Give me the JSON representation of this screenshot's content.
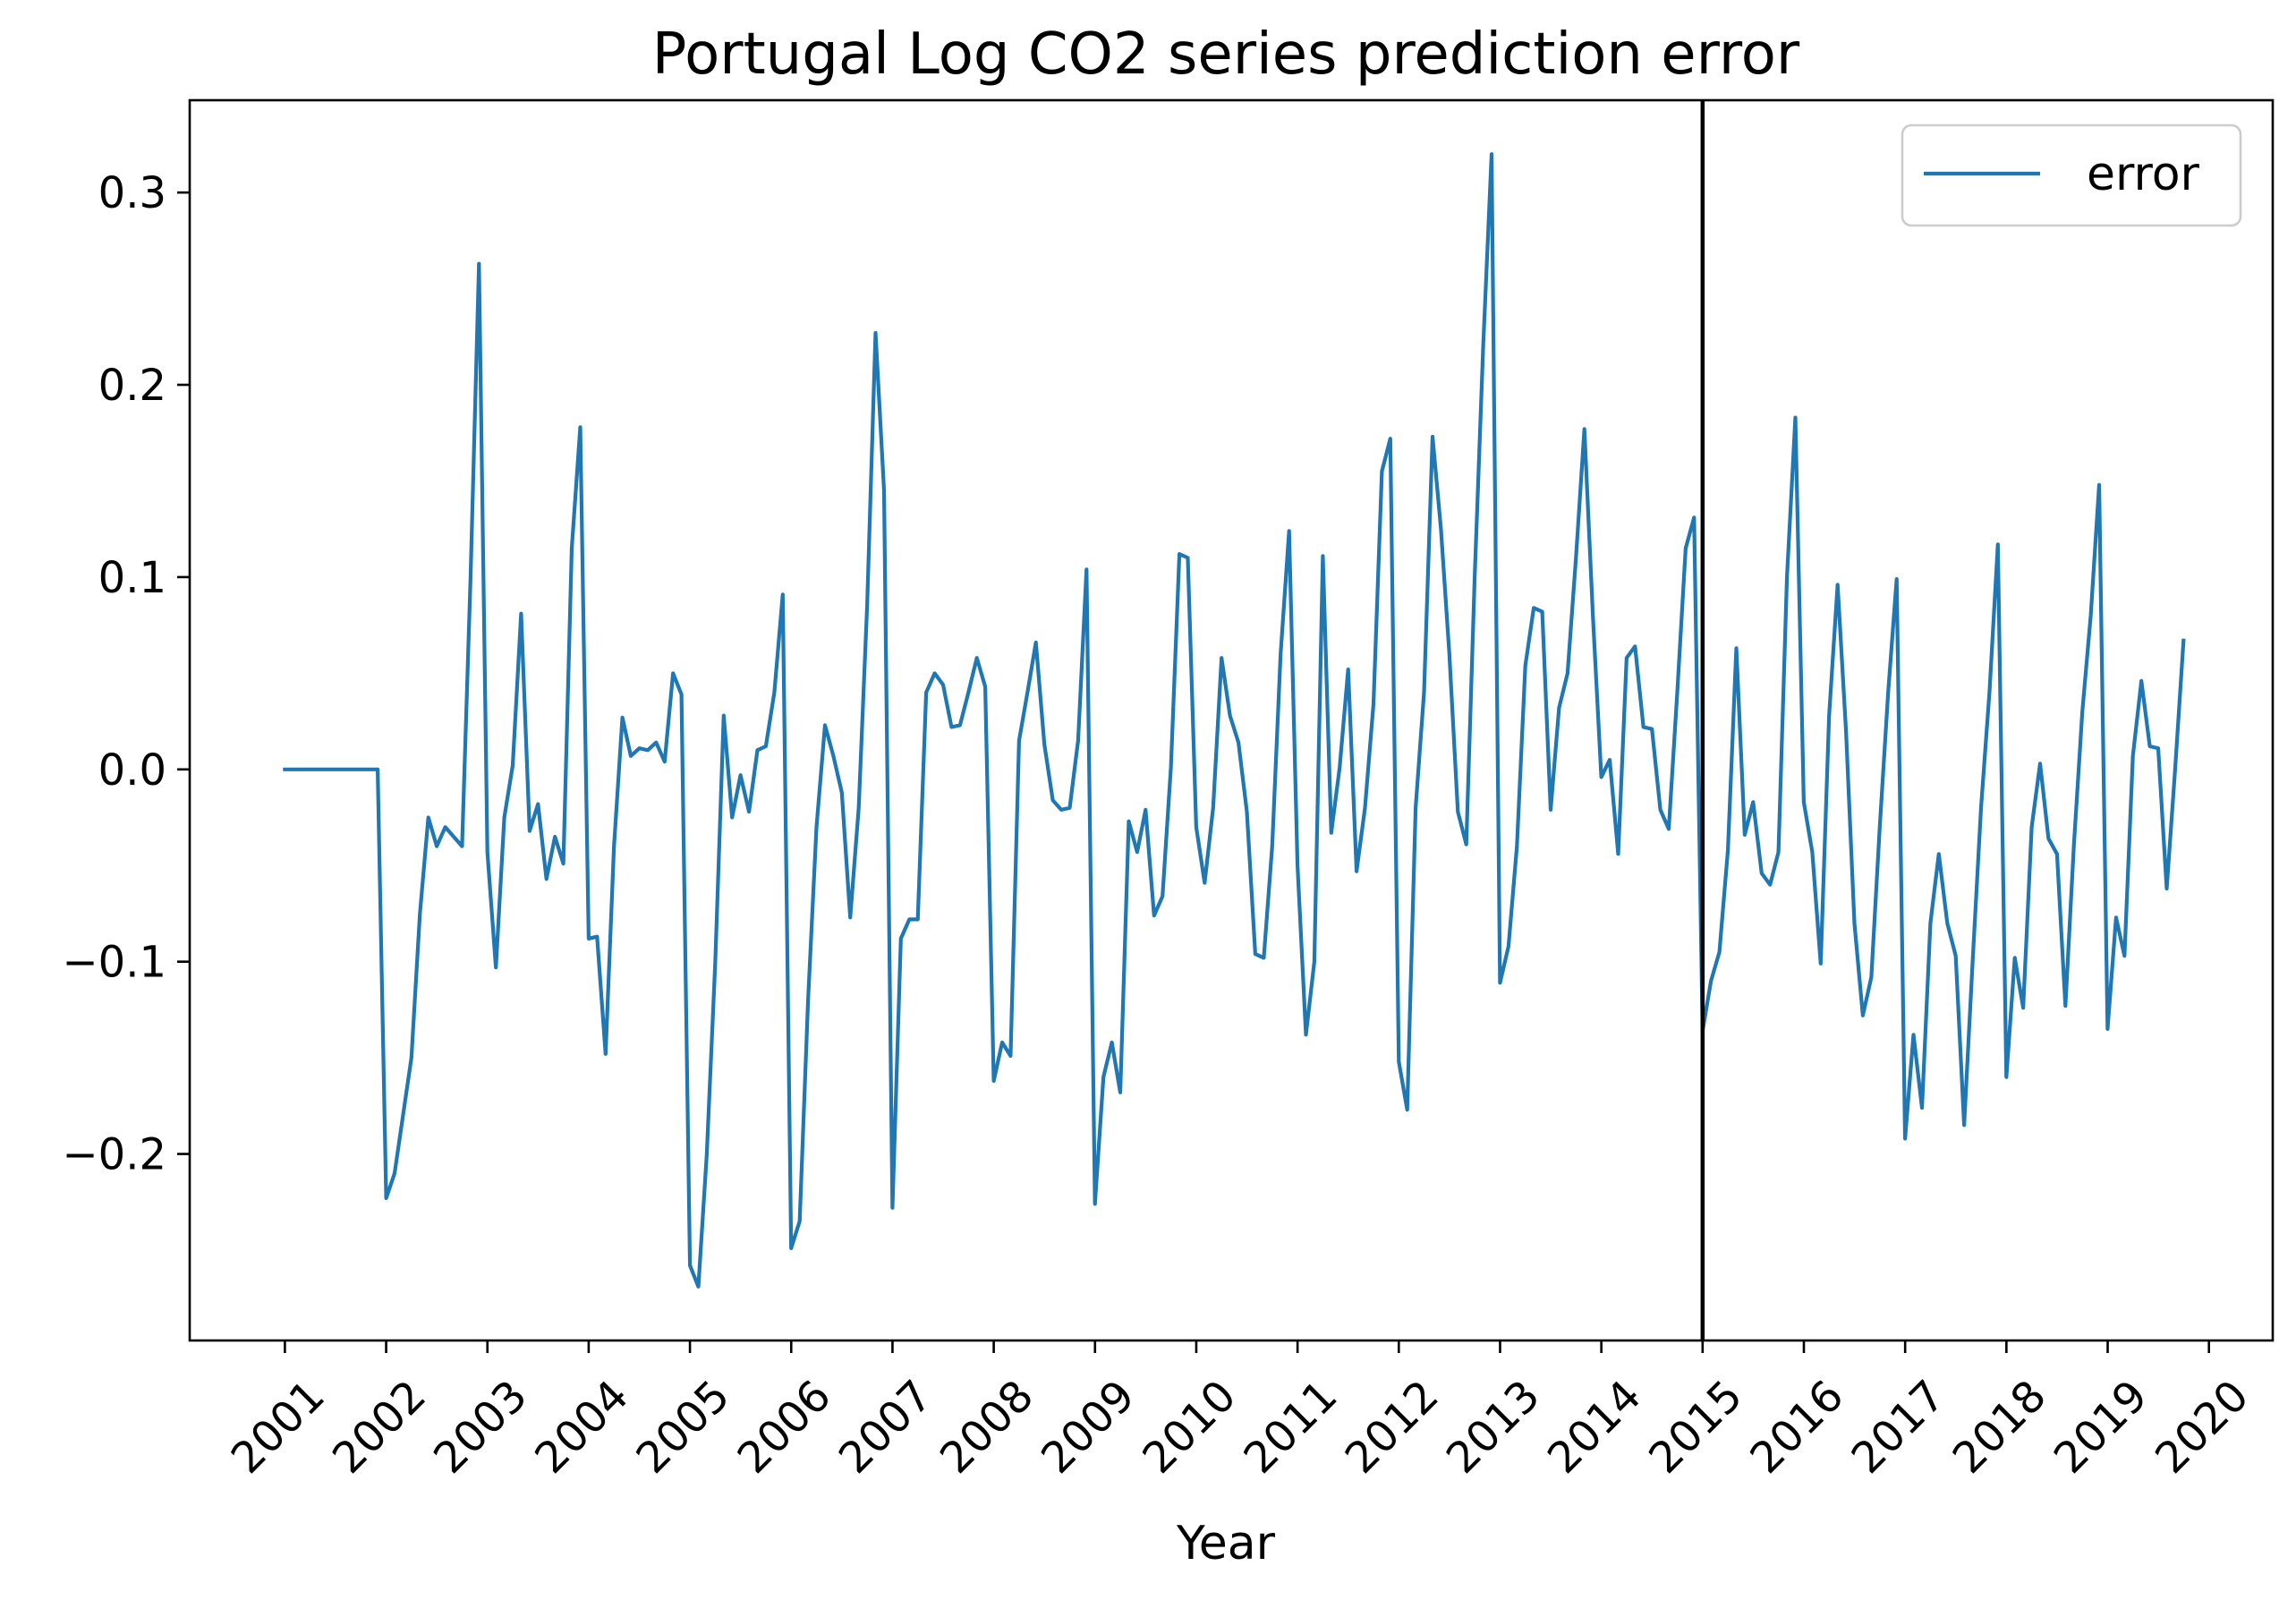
{
  "chart_data": {
    "type": "line",
    "title": "Portugal Log CO2 series prediction error",
    "xlabel": "Year",
    "ylabel": "",
    "xlim": [
      2000.06,
      2020.63
    ],
    "ylim": [
      -0.297,
      0.348
    ],
    "x_ticks": [
      2001,
      2002,
      2003,
      2004,
      2005,
      2006,
      2007,
      2008,
      2009,
      2010,
      2011,
      2012,
      2013,
      2014,
      2015,
      2016,
      2017,
      2018,
      2019,
      2020
    ],
    "x_tick_labels": [
      "2001",
      "2002",
      "2003",
      "2004",
      "2005",
      "2006",
      "2007",
      "2008",
      "2009",
      "2010",
      "2011",
      "2012",
      "2013",
      "2014",
      "2015",
      "2016",
      "2017",
      "2018",
      "2019",
      "2020"
    ],
    "y_ticks": [
      -0.2,
      -0.1,
      0.0,
      0.1,
      0.2,
      0.3
    ],
    "y_tick_labels": [
      "−0.2",
      "−0.1",
      "0.0",
      "0.1",
      "0.2",
      "0.3"
    ],
    "vertical_line_x": 2015,
    "grid": false,
    "legend_position": "top-right",
    "colors": {
      "series": "#1f77b4",
      "vline": "#000000"
    },
    "series": [
      {
        "name": "error",
        "start_year": 2001,
        "step": 0.08333,
        "values": [
          0.0,
          0.0,
          0.0,
          0.0,
          0.0,
          0.0,
          0.0,
          0.0,
          0.0,
          0.0,
          0.0,
          0.0,
          -0.223,
          -0.21,
          -0.18,
          -0.15,
          -0.075,
          -0.025,
          -0.04,
          -0.03,
          -0.035,
          -0.04,
          0.1,
          0.263,
          -0.043,
          -0.103,
          -0.025,
          0.002,
          0.081,
          -0.032,
          -0.018,
          -0.057,
          -0.035,
          -0.049,
          0.115,
          0.178,
          -0.088,
          -0.087,
          -0.148,
          -0.04,
          0.027,
          0.007,
          0.011,
          0.01,
          0.014,
          0.004,
          0.05,
          0.039,
          -0.258,
          -0.269,
          -0.2,
          -0.1,
          0.028,
          -0.025,
          -0.003,
          -0.022,
          0.01,
          0.012,
          0.04,
          0.091,
          -0.249,
          -0.235,
          -0.12,
          -0.03,
          0.023,
          0.007,
          -0.012,
          -0.077,
          -0.02,
          0.085,
          0.227,
          0.145,
          -0.228,
          -0.088,
          -0.078,
          -0.078,
          0.04,
          0.05,
          0.044,
          0.022,
          0.023,
          0.04,
          0.058,
          0.043,
          -0.162,
          -0.142,
          -0.149,
          0.015,
          0.04,
          0.066,
          0.013,
          -0.016,
          -0.021,
          -0.02,
          0.015,
          0.104,
          -0.226,
          -0.16,
          -0.142,
          -0.168,
          -0.027,
          -0.043,
          -0.021,
          -0.076,
          -0.066,
          0.001,
          0.112,
          0.11,
          -0.03,
          -0.059,
          -0.02,
          0.058,
          0.028,
          0.014,
          -0.022,
          -0.096,
          -0.098,
          -0.04,
          0.06,
          0.124,
          -0.05,
          -0.138,
          -0.1,
          0.111,
          -0.033,
          0.001,
          0.052,
          -0.053,
          -0.02,
          0.034,
          0.155,
          0.172,
          -0.152,
          -0.177,
          -0.02,
          0.04,
          0.173,
          0.125,
          0.06,
          -0.022,
          -0.039,
          0.1,
          0.22,
          0.32,
          -0.111,
          -0.092,
          -0.04,
          0.054,
          0.084,
          0.082,
          -0.021,
          0.032,
          0.05,
          0.11,
          0.177,
          0.08,
          -0.004,
          0.005,
          -0.044,
          0.058,
          0.064,
          0.022,
          0.021,
          -0.021,
          -0.031,
          0.04,
          0.115,
          0.131,
          -0.136,
          -0.11,
          -0.095,
          -0.042,
          0.063,
          -0.034,
          -0.017,
          -0.054,
          -0.06,
          -0.043,
          0.1,
          0.183,
          -0.017,
          -0.043,
          -0.101,
          0.028,
          0.096,
          0.02,
          -0.08,
          -0.128,
          -0.108,
          -0.03,
          0.04,
          0.099,
          -0.192,
          -0.138,
          -0.176,
          -0.08,
          -0.044,
          -0.08,
          -0.097,
          -0.185,
          -0.1,
          -0.02,
          0.04,
          0.117,
          -0.16,
          -0.098,
          -0.124,
          -0.03,
          0.003,
          -0.036,
          -0.044,
          -0.123,
          -0.04,
          0.03,
          0.08,
          0.148,
          -0.135,
          -0.077,
          -0.097,
          0.007,
          0.046,
          0.012,
          0.011,
          -0.062,
          0.0,
          0.067
        ]
      }
    ]
  }
}
